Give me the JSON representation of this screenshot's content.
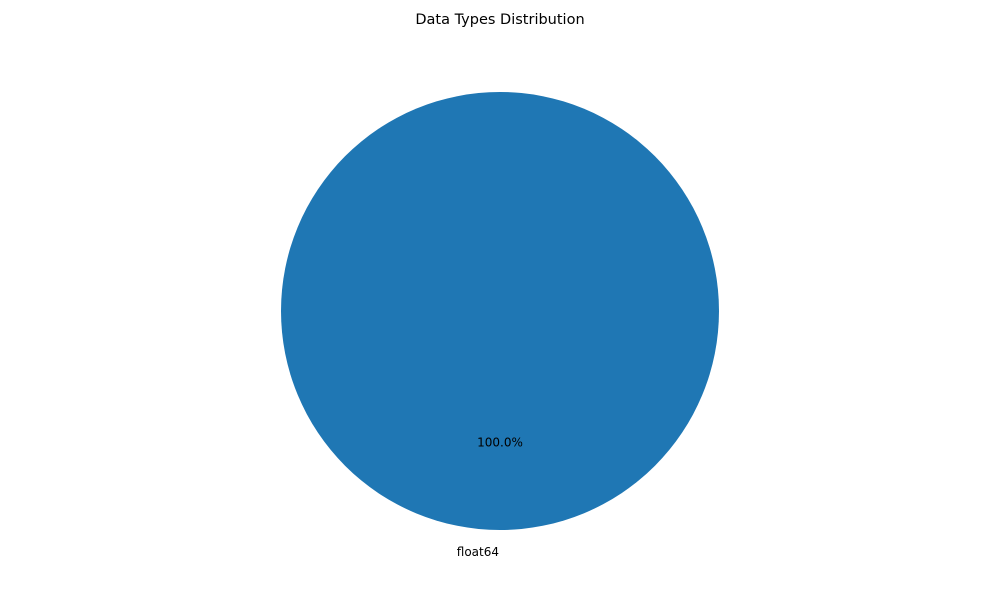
{
  "chart_data": {
    "type": "pie",
    "title": "Data Types Distribution",
    "slices": [
      {
        "label": "float64",
        "value": 100.0,
        "pct_label": "100.0%",
        "color": "#1f77b4"
      }
    ]
  }
}
